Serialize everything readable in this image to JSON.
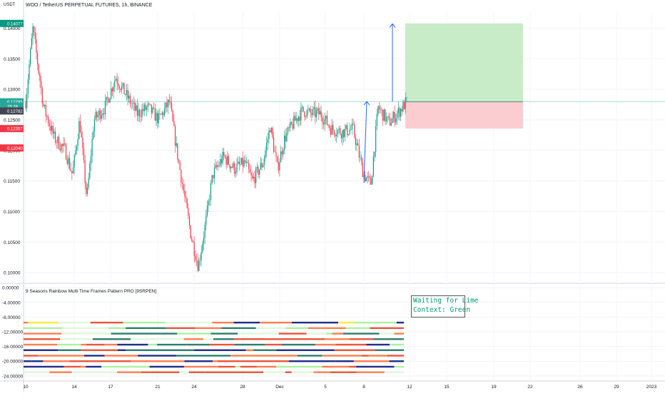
{
  "header": {
    "currency": "USDT",
    "symbol_title": "WOO / TetherUS PERPETUAL FUTURES, 1h, BINANCE"
  },
  "indicator": {
    "title": "9 Seasons Rainbow Multi Time Frames Pattern PRO [9SRPEN]",
    "status_line1": "Waiting for Lime",
    "status_line2": "Context: Green"
  },
  "chart_data": [
    {
      "type": "candlestick",
      "title": "WOO / TetherUS PERPETUAL FUTURES, 1h, BINANCE",
      "ylabel": "USDT",
      "ylim": [
        0.0985,
        0.1425
      ],
      "y_ticks": [
        0.1,
        0.105,
        0.11,
        0.115,
        0.12,
        0.125,
        0.13,
        0.135,
        0.14
      ],
      "y_tick_labels": [
        "0.10000",
        "0.10500",
        "0.11000",
        "0.11500",
        "0.12000",
        "0.12500",
        "0.13000",
        "0.13500",
        "0.14000"
      ],
      "x_tick_labels": [
        "10",
        "14",
        "17",
        "21",
        "24",
        "28",
        "Dec",
        "5",
        "8",
        "12",
        "15",
        "19",
        "22",
        "26",
        "29",
        "2023"
      ],
      "price_tags": [
        {
          "label": "0.14077",
          "value": 0.14077,
          "color": "#089981"
        },
        {
          "label": "0.12795",
          "value": 0.12795,
          "color": "#26a69a"
        },
        {
          "label": "25:28",
          "value": 0.1272,
          "color": "#26a69a"
        },
        {
          "label": "0.12782",
          "value": 0.12645,
          "color": "#434651"
        },
        {
          "label": "0.12357",
          "value": 0.12357,
          "color": "#f23645"
        },
        {
          "label": "0.12040",
          "value": 0.1204,
          "color": "#f23645"
        }
      ],
      "price_path": [
        [
          0,
          0.128
        ],
        [
          2,
          0.14
        ],
        [
          5,
          0.127
        ],
        [
          8,
          0.122
        ],
        [
          11,
          0.12
        ],
        [
          13,
          0.116
        ],
        [
          15,
          0.125
        ],
        [
          17,
          0.112
        ],
        [
          19,
          0.125
        ],
        [
          22,
          0.127
        ],
        [
          25,
          0.132
        ],
        [
          28,
          0.129
        ],
        [
          31,
          0.126
        ],
        [
          34,
          0.127
        ],
        [
          37,
          0.125
        ],
        [
          40,
          0.128
        ],
        [
          42,
          0.12
        ],
        [
          44,
          0.113
        ],
        [
          46,
          0.106
        ],
        [
          48,
          0.101
        ],
        [
          50,
          0.108
        ],
        [
          52,
          0.116
        ],
        [
          55,
          0.119
        ],
        [
          58,
          0.117
        ],
        [
          61,
          0.118
        ],
        [
          63,
          0.115
        ],
        [
          66,
          0.118
        ],
        [
          68,
          0.124
        ],
        [
          70,
          0.117
        ],
        [
          72,
          0.122
        ],
        [
          75,
          0.125
        ],
        [
          77,
          0.1265
        ],
        [
          79,
          0.126
        ],
        [
          82,
          0.126
        ],
        [
          85,
          0.1235
        ],
        [
          88,
          0.123
        ],
        [
          91,
          0.1235
        ],
        [
          94,
          0.116
        ],
        [
          96,
          0.1145
        ],
        [
          98,
          0.127
        ],
        [
          101,
          0.1245
        ],
        [
          104,
          0.1265
        ],
        [
          106,
          0.128
        ]
      ],
      "arrows": [
        {
          "from": 0.1147,
          "to": 0.128
        },
        {
          "from": 0.128,
          "to": 0.1407
        }
      ],
      "position": {
        "entry": 0.12795,
        "target": 0.14077,
        "stop": 0.12357
      }
    },
    {
      "type": "heatmap",
      "title": "9 Seasons Rainbow Multi Time Frames Pattern PRO [9SRPEN]",
      "ylim": [
        -25,
        1
      ],
      "y_ticks": [
        0,
        -4,
        -8,
        -12,
        -16,
        -20,
        -24
      ],
      "y_tick_labels": [
        "0.00000",
        "-4.00000",
        "-8.00000",
        "-12.00000",
        "-16.00000",
        "-20.00000",
        "-24.00000"
      ],
      "rows": [
        -9.5,
        -11,
        -12.5,
        -14,
        -15.5,
        -17,
        -18.5,
        -20,
        -21.5,
        -23
      ],
      "colors": {
        "orange": "#ff7f50",
        "red": "#e8553a",
        "navy": "#1f2d8a",
        "teal": "#2e7d6e",
        "lightgreen": "#aef0a0",
        "yellow": "#ffeb3b",
        "pale": "#dff7dc"
      }
    }
  ]
}
